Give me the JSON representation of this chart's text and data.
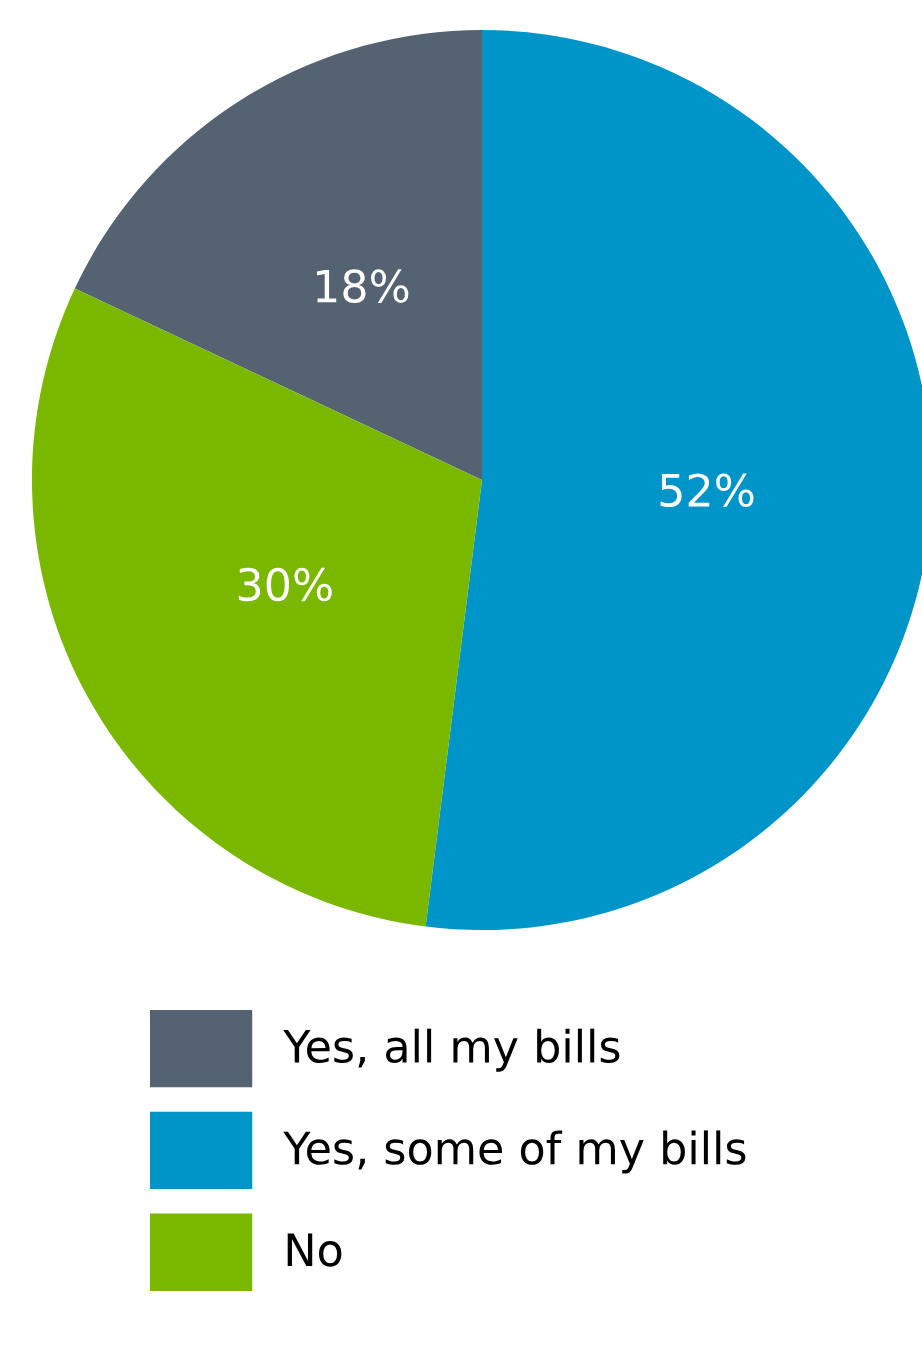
{
  "chart_data": {
    "type": "pie",
    "categories": [
      "Yes, all my bills",
      "Yes, some of my bills",
      "No"
    ],
    "values": [
      18,
      52,
      30
    ],
    "colors": [
      "#546272",
      "#0095c8",
      "#7ab800"
    ],
    "value_labels": [
      "18%",
      "52%",
      "30%"
    ],
    "legend": "bottom"
  }
}
